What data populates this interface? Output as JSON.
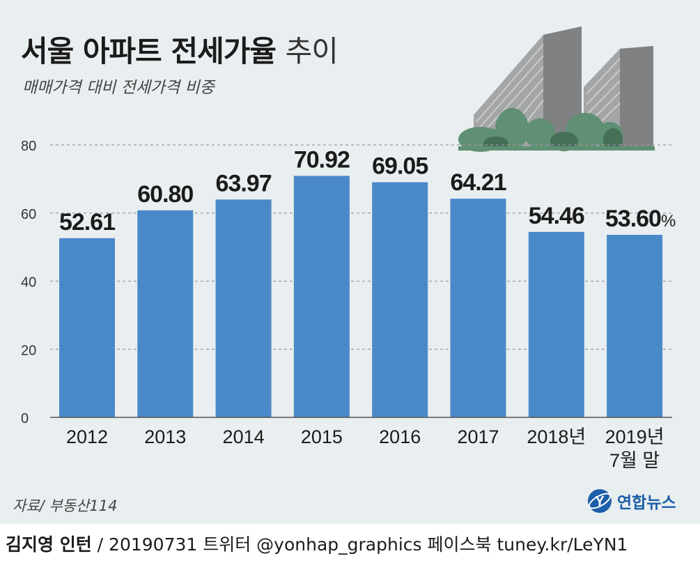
{
  "header": {
    "title_main": "서울 아파트 전세가율",
    "title_suffix": "추이",
    "subtitle": "매매가격 대비 전세가격 비중"
  },
  "chart_data": {
    "type": "bar",
    "title": "서울 아파트 전세가율 추이",
    "subtitle": "매매가격 대비 전세가격 비중",
    "unit": "%",
    "categories": [
      "2012",
      "2013",
      "2014",
      "2015",
      "2016",
      "2017",
      "2018년",
      "2019년\n7월 말"
    ],
    "values": [
      52.61,
      60.8,
      63.97,
      70.92,
      69.05,
      64.21,
      54.46,
      53.6
    ],
    "value_labels": [
      "52.61",
      "60.80",
      "63.97",
      "70.92",
      "69.05",
      "64.21",
      "54.46",
      "53.60"
    ],
    "ylim": [
      0,
      80
    ],
    "yticks": [
      0,
      20,
      40,
      60,
      80
    ],
    "grid": true,
    "bar_color": "#4a89c8",
    "xlabel": "",
    "ylabel": ""
  },
  "source": "자료/ 부동산114",
  "logo": {
    "text": "연합뉴스",
    "color": "#1d5fa8"
  },
  "footer": {
    "author": "김지영 인턴",
    "separator": " / ",
    "details": "20190731 트위터 @yonhap_graphics  페이스북 tuney.kr/LeYN1"
  }
}
